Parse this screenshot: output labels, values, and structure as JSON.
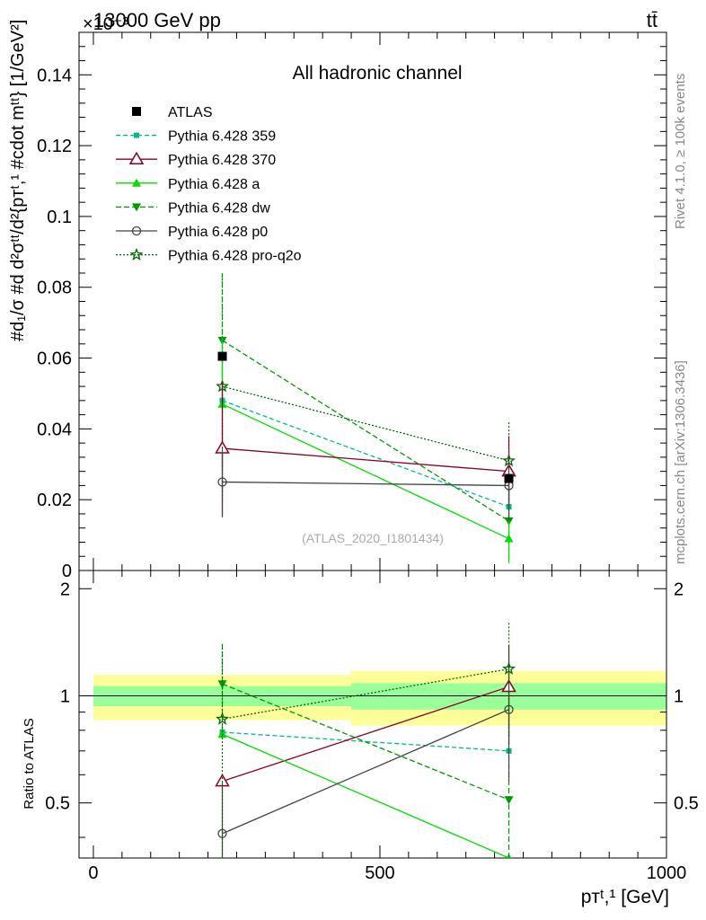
{
  "header": {
    "left": "13000 GeV pp",
    "right": "tt̄",
    "exponent": "×10⁻³"
  },
  "side_text": {
    "top": "Rivet 4.1.0, ≥ 100k events",
    "bottom": "mcplots.cern.ch [arXiv:1306.3436]"
  },
  "chart_data": [
    {
      "type": "line",
      "panel": "main",
      "title": "All hadronic channel",
      "watermark": "(ATLAS_2020_I1801434)",
      "ylabel": "#d₁/σ #d d²σᵗᵗ/d²{pᴛᵗ,¹ #cdot mᵗᵗ} [1/GeV²]",
      "ylim": [
        0,
        0.152
      ],
      "xlim": [
        -25,
        1000
      ],
      "yticks": [
        0,
        0.02,
        0.04,
        0.06,
        0.08,
        0.1,
        0.12,
        0.14
      ],
      "ytick_labels": [
        "0",
        "0.02",
        "0.04",
        "0.06",
        "0.08",
        "0.1",
        "0.12",
        "0.14"
      ],
      "x": [
        225,
        725
      ],
      "series": [
        {
          "name": "ATLAS",
          "values": [
            0.0605,
            0.026
          ],
          "err": [
            0,
            0
          ],
          "color": "#000000",
          "marker": "square",
          "dash": "none"
        },
        {
          "name": "Pythia 6.428 359",
          "values": [
            0.048,
            0.018
          ],
          "err": [
            0.018,
            0.008
          ],
          "color": "#00bb88",
          "marker": "smallsquare",
          "dash": "5,3"
        },
        {
          "name": "Pythia 6.428 370",
          "values": [
            0.0345,
            0.028
          ],
          "err": [
            0.019,
            0.01
          ],
          "color": "#8b0020",
          "marker": "opentriangle",
          "dash": "none"
        },
        {
          "name": "Pythia 6.428 a",
          "values": [
            0.047,
            0.009
          ],
          "err": [
            0.018,
            0.007
          ],
          "color": "#00dd00",
          "marker": "triangle",
          "dash": "none"
        },
        {
          "name": "Pythia 6.428 dw",
          "values": [
            0.065,
            0.014
          ],
          "err": [
            0.019,
            0.011
          ],
          "color": "#009900",
          "marker": "invtriangle",
          "dash": "6,3"
        },
        {
          "name": "Pythia 6.428 p0",
          "values": [
            0.025,
            0.024
          ],
          "err": [
            0.01,
            0.01
          ],
          "color": "#444444",
          "marker": "opencircle",
          "dash": "none"
        },
        {
          "name": "Pythia 6.428 pro-q2o",
          "values": [
            0.052,
            0.031
          ],
          "err": [
            0.032,
            0.011
          ],
          "color": "#006600",
          "marker": "star",
          "dash": "2,2"
        }
      ]
    },
    {
      "type": "line",
      "panel": "ratio",
      "xlabel": "pᴛᵗ,¹ [GeV]",
      "ylabel": "Ratio to ATLAS",
      "ylim": [
        0.35,
        2.25
      ],
      "xlim": [
        -25,
        1000
      ],
      "yticks": [
        0.5,
        1,
        2
      ],
      "ytick_labels": [
        "0.5",
        "1",
        "2"
      ],
      "xticks": [
        0,
        500,
        1000
      ],
      "xtick_labels": [
        "0",
        "500",
        "1000"
      ],
      "bands": [
        {
          "x0": 0,
          "x1": 450,
          "inner": [
            0.935,
            1.065
          ],
          "outer": [
            0.855,
            1.145
          ]
        },
        {
          "x0": 450,
          "x1": 1000,
          "inner": [
            0.915,
            1.085
          ],
          "outer": [
            0.825,
            1.175
          ]
        }
      ],
      "x": [
        225,
        725
      ],
      "series": [
        {
          "name": "Pythia 6.428 359",
          "values": [
            0.79,
            0.7
          ],
          "err": [
            0,
            0
          ]
        },
        {
          "name": "Pythia 6.428 370",
          "values": [
            0.575,
            1.06
          ],
          "err": [
            0,
            0.33
          ]
        },
        {
          "name": "Pythia 6.428 a",
          "values": [
            0.78,
            0.35
          ],
          "err": [
            0,
            0
          ]
        },
        {
          "name": "Pythia 6.428 dw",
          "values": [
            1.08,
            0.51
          ],
          "err": [
            0.32,
            0.4
          ]
        },
        {
          "name": "Pythia 6.428 p0",
          "values": [
            0.41,
            0.915
          ],
          "err": [
            0.16,
            0.34
          ]
        },
        {
          "name": "Pythia 6.428 pro-q2o",
          "values": [
            0.86,
            1.19
          ],
          "err": [
            0.53,
            0.42
          ]
        }
      ]
    }
  ]
}
